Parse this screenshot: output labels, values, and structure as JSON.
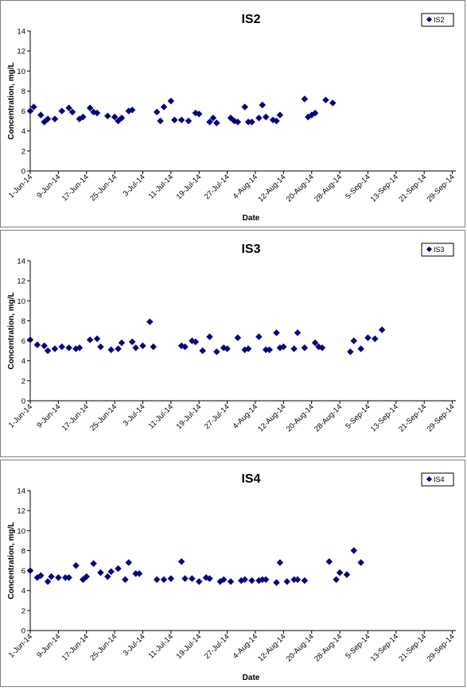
{
  "chart_data": [
    {
      "type": "scatter",
      "title": "IS2",
      "xlabel": "Date",
      "ylabel": "Concentration, mg/L",
      "ylim": [
        0,
        14
      ],
      "yticks": [
        0,
        2,
        4,
        6,
        8,
        10,
        12,
        14
      ],
      "xlim": [
        "2014-06-01",
        "2014-09-30"
      ],
      "xticks": [
        "1-Jun-14",
        "9-Jun-14",
        "17-Jun-14",
        "25-Jun-14",
        "3-Jul-14",
        "11-Jul-14",
        "19-Jul-14",
        "27-Jul-14",
        "4-Aug-14",
        "12-Aug-14",
        "20-Aug-14",
        "28-Aug-14",
        "5-Sep-14",
        "13-Sep-14",
        "21-Sep-14",
        "29-Sep-14"
      ],
      "legend": "top-right",
      "color": "#000080",
      "series": [
        {
          "name": "IS2",
          "points": [
            [
              "2014-06-01",
              6.0
            ],
            [
              "2014-06-02",
              6.4
            ],
            [
              "2014-06-04",
              5.6
            ],
            [
              "2014-06-05",
              4.9
            ],
            [
              "2014-06-06",
              5.2
            ],
            [
              "2014-06-08",
              5.2
            ],
            [
              "2014-06-10",
              6.0
            ],
            [
              "2014-06-12",
              6.3
            ],
            [
              "2014-06-13",
              5.9
            ],
            [
              "2014-06-15",
              5.2
            ],
            [
              "2014-06-16",
              5.4
            ],
            [
              "2014-06-18",
              6.3
            ],
            [
              "2014-06-19",
              5.9
            ],
            [
              "2014-06-20",
              5.8
            ],
            [
              "2014-06-23",
              5.5
            ],
            [
              "2014-06-25",
              5.4
            ],
            [
              "2014-06-26",
              5.0
            ],
            [
              "2014-06-27",
              5.3
            ],
            [
              "2014-06-29",
              6.0
            ],
            [
              "2014-06-30",
              6.1
            ],
            [
              "2014-07-07",
              5.9
            ],
            [
              "2014-07-08",
              5.0
            ],
            [
              "2014-07-09",
              6.4
            ],
            [
              "2014-07-11",
              7.0
            ],
            [
              "2014-07-12",
              5.1
            ],
            [
              "2014-07-14",
              5.1
            ],
            [
              "2014-07-16",
              5.0
            ],
            [
              "2014-07-18",
              5.8
            ],
            [
              "2014-07-19",
              5.7
            ],
            [
              "2014-07-22",
              4.9
            ],
            [
              "2014-07-23",
              5.3
            ],
            [
              "2014-07-24",
              4.8
            ],
            [
              "2014-07-28",
              5.3
            ],
            [
              "2014-07-29",
              5.0
            ],
            [
              "2014-07-30",
              4.9
            ],
            [
              "2014-08-01",
              6.4
            ],
            [
              "2014-08-02",
              4.9
            ],
            [
              "2014-08-03",
              4.9
            ],
            [
              "2014-08-05",
              5.3
            ],
            [
              "2014-08-06",
              6.6
            ],
            [
              "2014-08-07",
              5.4
            ],
            [
              "2014-08-09",
              5.1
            ],
            [
              "2014-08-10",
              5.0
            ],
            [
              "2014-08-11",
              5.6
            ],
            [
              "2014-08-18",
              7.2
            ],
            [
              "2014-08-19",
              5.4
            ],
            [
              "2014-08-20",
              5.6
            ],
            [
              "2014-08-21",
              5.8
            ],
            [
              "2014-08-24",
              7.1
            ],
            [
              "2014-08-26",
              6.8
            ]
          ]
        }
      ]
    },
    {
      "type": "scatter",
      "title": "IS3",
      "xlabel": "",
      "ylabel": "Concentration, mg/L",
      "ylim": [
        0,
        14
      ],
      "yticks": [
        0,
        2,
        4,
        6,
        8,
        10,
        12,
        14
      ],
      "xlim": [
        "2014-06-01",
        "2014-09-30"
      ],
      "xticks": [
        "1-Jun-14",
        "9-Jun-14",
        "17-Jun-14",
        "25-Jun-14",
        "3-Jul-14",
        "11-Jul-14",
        "19-Jul-14",
        "27-Jul-14",
        "4-Aug-14",
        "12-Aug-14",
        "20-Aug-14",
        "28-Aug-14",
        "5-Sep-14",
        "13-Sep-14",
        "21-Sep-14",
        "29-Sep-14"
      ],
      "legend": "top-right",
      "color": "#000080",
      "series": [
        {
          "name": "IS3",
          "points": [
            [
              "2014-06-01",
              6.1
            ],
            [
              "2014-06-03",
              5.6
            ],
            [
              "2014-06-05",
              5.5
            ],
            [
              "2014-06-06",
              5.0
            ],
            [
              "2014-06-08",
              5.2
            ],
            [
              "2014-06-10",
              5.4
            ],
            [
              "2014-06-12",
              5.3
            ],
            [
              "2014-06-14",
              5.2
            ],
            [
              "2014-06-15",
              5.3
            ],
            [
              "2014-06-18",
              6.1
            ],
            [
              "2014-06-20",
              6.2
            ],
            [
              "2014-06-21",
              5.4
            ],
            [
              "2014-06-24",
              5.1
            ],
            [
              "2014-06-26",
              5.2
            ],
            [
              "2014-06-27",
              5.8
            ],
            [
              "2014-06-30",
              5.9
            ],
            [
              "2014-07-01",
              5.3
            ],
            [
              "2014-07-03",
              5.5
            ],
            [
              "2014-07-05",
              7.9
            ],
            [
              "2014-07-06",
              5.4
            ],
            [
              "2014-07-14",
              5.5
            ],
            [
              "2014-07-15",
              5.4
            ],
            [
              "2014-07-17",
              6.0
            ],
            [
              "2014-07-18",
              5.9
            ],
            [
              "2014-07-20",
              5.0
            ],
            [
              "2014-07-22",
              6.4
            ],
            [
              "2014-07-24",
              4.9
            ],
            [
              "2014-07-26",
              5.3
            ],
            [
              "2014-07-27",
              5.2
            ],
            [
              "2014-07-30",
              6.3
            ],
            [
              "2014-08-01",
              5.1
            ],
            [
              "2014-08-02",
              5.2
            ],
            [
              "2014-08-05",
              6.4
            ],
            [
              "2014-08-07",
              5.1
            ],
            [
              "2014-08-08",
              5.1
            ],
            [
              "2014-08-10",
              6.8
            ],
            [
              "2014-08-11",
              5.3
            ],
            [
              "2014-08-12",
              5.4
            ],
            [
              "2014-08-15",
              5.2
            ],
            [
              "2014-08-16",
              6.8
            ],
            [
              "2014-08-18",
              5.3
            ],
            [
              "2014-08-21",
              5.8
            ],
            [
              "2014-08-22",
              5.4
            ],
            [
              "2014-08-23",
              5.3
            ],
            [
              "2014-08-31",
              4.9
            ],
            [
              "2014-09-01",
              6.0
            ],
            [
              "2014-09-03",
              5.2
            ],
            [
              "2014-09-05",
              6.3
            ],
            [
              "2014-09-07",
              6.2
            ],
            [
              "2014-09-09",
              7.1
            ]
          ]
        }
      ]
    },
    {
      "type": "scatter",
      "title": "IS4",
      "xlabel": "Date",
      "ylabel": "Concentration, mg/L",
      "ylim": [
        0,
        14
      ],
      "yticks": [
        0,
        2,
        4,
        6,
        8,
        10,
        12,
        14
      ],
      "xlim": [
        "2014-06-01",
        "2014-09-30"
      ],
      "xticks": [
        "1-Jun-14",
        "9-Jun-14",
        "17-Jun-14",
        "25-Jun-14",
        "3-Jul-14",
        "11-Jul-14",
        "19-Jul-14",
        "27-Jul-14",
        "4-Aug-14",
        "12-Aug-14",
        "20-Aug-14",
        "28-Aug-14",
        "5-Sep-14",
        "13-Sep-14",
        "21-Sep-14",
        "29-Sep-14"
      ],
      "legend": "top-right",
      "color": "#000080",
      "series": [
        {
          "name": "IS4",
          "points": [
            [
              "2014-06-01",
              6.0
            ],
            [
              "2014-06-03",
              5.3
            ],
            [
              "2014-06-04",
              5.5
            ],
            [
              "2014-06-06",
              4.9
            ],
            [
              "2014-06-07",
              5.4
            ],
            [
              "2014-06-09",
              5.3
            ],
            [
              "2014-06-11",
              5.3
            ],
            [
              "2014-06-12",
              5.3
            ],
            [
              "2014-06-14",
              6.5
            ],
            [
              "2014-06-16",
              5.1
            ],
            [
              "2014-06-17",
              5.4
            ],
            [
              "2014-06-19",
              6.7
            ],
            [
              "2014-06-21",
              5.8
            ],
            [
              "2014-06-23",
              5.4
            ],
            [
              "2014-06-24",
              5.9
            ],
            [
              "2014-06-26",
              6.2
            ],
            [
              "2014-06-28",
              5.1
            ],
            [
              "2014-06-29",
              6.8
            ],
            [
              "2014-07-01",
              5.7
            ],
            [
              "2014-07-02",
              5.7
            ],
            [
              "2014-07-07",
              5.1
            ],
            [
              "2014-07-09",
              5.1
            ],
            [
              "2014-07-11",
              5.2
            ],
            [
              "2014-07-14",
              6.9
            ],
            [
              "2014-07-15",
              5.2
            ],
            [
              "2014-07-17",
              5.2
            ],
            [
              "2014-07-19",
              4.9
            ],
            [
              "2014-07-21",
              5.3
            ],
            [
              "2014-07-22",
              5.2
            ],
            [
              "2014-07-25",
              4.9
            ],
            [
              "2014-07-26",
              5.1
            ],
            [
              "2014-07-28",
              4.9
            ],
            [
              "2014-07-31",
              5.0
            ],
            [
              "2014-08-01",
              5.1
            ],
            [
              "2014-08-03",
              5.0
            ],
            [
              "2014-08-05",
              5.0
            ],
            [
              "2014-08-06",
              5.1
            ],
            [
              "2014-08-07",
              5.1
            ],
            [
              "2014-08-10",
              4.8
            ],
            [
              "2014-08-11",
              6.8
            ],
            [
              "2014-08-13",
              4.9
            ],
            [
              "2014-08-15",
              5.1
            ],
            [
              "2014-08-16",
              5.1
            ],
            [
              "2014-08-18",
              5.0
            ],
            [
              "2014-08-25",
              6.9
            ],
            [
              "2014-08-27",
              5.1
            ],
            [
              "2014-08-28",
              5.8
            ],
            [
              "2014-08-30",
              5.6
            ],
            [
              "2014-09-01",
              8.0
            ],
            [
              "2014-09-03",
              6.8
            ]
          ]
        }
      ]
    }
  ]
}
